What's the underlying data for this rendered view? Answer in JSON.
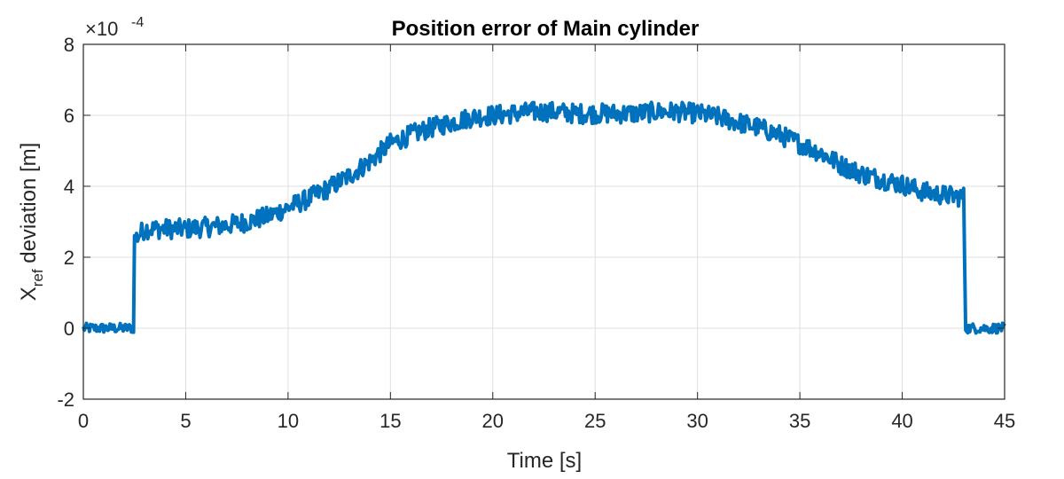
{
  "chart_data": {
    "type": "line",
    "title": "Position error of Main cylinder",
    "xlabel": "Time [s]",
    "ylabel_main": "X",
    "ylabel_sub": "ref",
    "ylabel_rest": " deviation [m]",
    "y_exponent_base": "×10",
    "y_exponent_power": "-4",
    "xlim": [
      0,
      45
    ],
    "ylim": [
      -2,
      8
    ],
    "xticks": [
      "0",
      "5",
      "10",
      "15",
      "20",
      "25",
      "30",
      "35",
      "40",
      "45"
    ],
    "yticks": [
      "-2",
      "0",
      "2",
      "4",
      "6",
      "8"
    ],
    "grid": true,
    "line_color": "#0072BD",
    "series": [
      {
        "x": [
          0,
          1,
          2,
          2.45,
          2.5,
          3,
          4,
          5,
          6,
          7,
          8,
          9,
          10,
          11,
          12,
          13,
          14,
          15,
          16,
          17,
          18,
          19,
          20,
          21,
          22,
          23,
          24,
          25,
          26,
          27,
          28,
          29,
          30,
          31,
          32,
          33,
          34,
          35,
          36,
          37,
          38,
          39,
          40,
          41,
          42,
          43,
          43.1,
          44,
          45
        ],
        "y": [
          0.0,
          0.0,
          0.0,
          0.0,
          2.5,
          2.8,
          2.8,
          2.8,
          2.85,
          2.9,
          3.0,
          3.15,
          3.4,
          3.65,
          3.95,
          4.3,
          4.7,
          5.2,
          5.45,
          5.65,
          5.8,
          5.95,
          6.0,
          6.05,
          6.1,
          6.1,
          6.05,
          6.05,
          6.05,
          6.05,
          6.1,
          6.1,
          6.05,
          5.95,
          5.8,
          5.65,
          5.45,
          5.2,
          4.95,
          4.6,
          4.35,
          4.2,
          4.05,
          3.85,
          3.75,
          3.7,
          0.0,
          0.0,
          0.0
        ],
        "noise_amplitude": 0.28
      }
    ]
  }
}
